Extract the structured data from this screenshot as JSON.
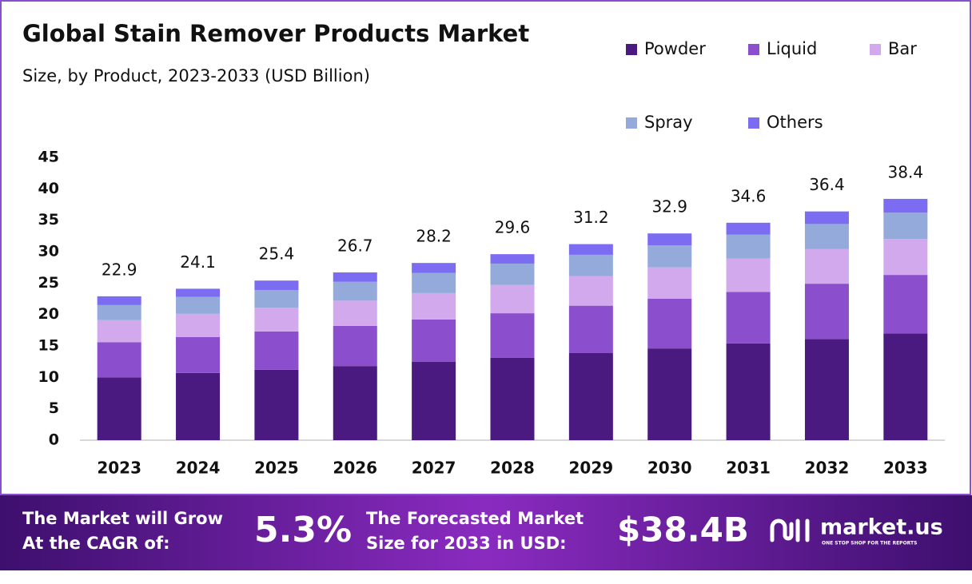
{
  "chart_data": {
    "type": "stacked_bar",
    "title": "Global Stain Remover Products Market",
    "subtitle": "Size, by Product, 2023-2033 (USD Billion)",
    "categories": [
      "2023",
      "2024",
      "2025",
      "2026",
      "2027",
      "2028",
      "2029",
      "2030",
      "2031",
      "2032",
      "2033"
    ],
    "series": [
      {
        "name": "Powder",
        "color": "#4b1a80",
        "values": [
          10.0,
          10.7,
          11.2,
          11.8,
          12.5,
          13.1,
          13.9,
          14.6,
          15.4,
          16.1,
          17.0
        ]
      },
      {
        "name": "Liquid",
        "color": "#8b4fce",
        "values": [
          5.6,
          5.7,
          6.1,
          6.4,
          6.7,
          7.1,
          7.5,
          7.9,
          8.2,
          8.8,
          9.3
        ]
      },
      {
        "name": "Bar",
        "color": "#d3a9ee",
        "values": [
          3.5,
          3.7,
          3.8,
          4.0,
          4.2,
          4.5,
          4.7,
          5.0,
          5.3,
          5.5,
          5.7
        ]
      },
      {
        "name": "Spray",
        "color": "#94aada",
        "values": [
          2.4,
          2.7,
          2.8,
          3.0,
          3.2,
          3.4,
          3.4,
          3.5,
          3.8,
          4.0,
          4.2
        ]
      },
      {
        "name": "Others",
        "color": "#7c6cf2",
        "values": [
          1.4,
          1.3,
          1.5,
          1.5,
          1.6,
          1.5,
          1.7,
          1.9,
          1.9,
          2.0,
          2.2
        ]
      }
    ],
    "totals": [
      22.9,
      24.1,
      25.4,
      26.7,
      28.2,
      29.6,
      31.2,
      32.9,
      34.6,
      36.4,
      38.4
    ],
    "ylim": [
      0,
      45
    ],
    "yticks": [
      0,
      5,
      10,
      15,
      20,
      25,
      30,
      35,
      40,
      45
    ],
    "grid": false
  },
  "footer": {
    "cagr_text": [
      "The Market will Grow",
      "At the CAGR of:"
    ],
    "cagr_value": "5.3%",
    "forecast_text": [
      "The Forecasted Market",
      "Size for 2033 in USD:"
    ],
    "forecast_value": "$38.4B",
    "brand": "market.us",
    "tagline": "ONE STOP SHOP FOR THE REPORTS"
  }
}
